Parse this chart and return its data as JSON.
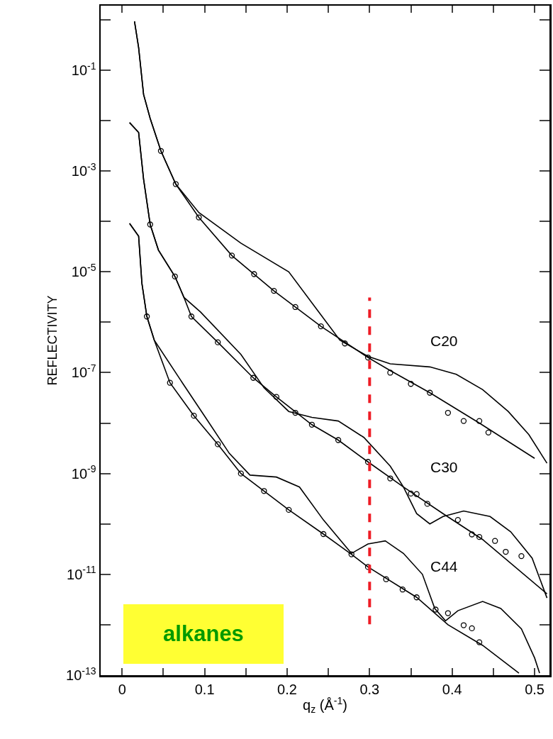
{
  "chart_data": {
    "type": "line",
    "xlabel": "q$_{z}$ (Å$^{-1}$)",
    "ylabel": "REFLECTIVITY",
    "log": "y",
    "grid": false,
    "xlim": [
      -0.026,
      0.518
    ],
    "ylim": [
      1e-13,
      1.9
    ],
    "xticks": [
      0,
      {
        "value": 0.05,
        "label": null
      },
      0.1,
      {
        "value": 0.15,
        "label": null
      },
      0.2,
      {
        "value": 0.25,
        "label": null
      },
      0.3,
      {
        "value": 0.35,
        "label": null
      },
      0.4,
      {
        "value": 0.45,
        "label": null
      },
      0.5
    ],
    "yticks": [
      {
        "value": 1e-13,
        "label": "10$^{-13}$"
      },
      {
        "value": 1e-12,
        "label": null
      },
      {
        "value": 1e-11,
        "label": "10$^{-11}$"
      },
      {
        "value": 1e-10,
        "label": null
      },
      {
        "value": 1e-09,
        "label": "10$^{-9}$"
      },
      {
        "value": 1e-08,
        "label": null
      },
      {
        "value": 1e-07,
        "label": "10$^{-7}$"
      },
      {
        "value": 1e-06,
        "label": null
      },
      {
        "value": 1e-05,
        "label": "10$^{-5}$"
      },
      {
        "value": 0.0001,
        "label": null
      },
      {
        "value": 0.001,
        "label": "10$^{-3}$"
      },
      {
        "value": 0.01,
        "label": null
      },
      {
        "value": 0.1,
        "label": "10$^{-1}$"
      },
      {
        "value": 1,
        "label": null
      }
    ],
    "series": [
      {
        "marker": "none",
        "color": "#000000",
        "x": [
          0.015,
          0.02,
          0.026,
          0.034,
          0.047,
          0.065,
          0.093,
          0.133,
          0.184,
          0.241,
          0.298,
          0.325,
          0.373,
          0.433,
          0.5
        ],
        "values": [
          0.93,
          0.28,
          0.033,
          0.011,
          0.0025,
          0.00055,
          0.00012,
          2.1e-05,
          4.2e-06,
          8.3e-07,
          2e-07,
          1.1e-07,
          4e-08,
          1e-08,
          2e-09
        ]
      },
      {
        "marker": "none",
        "color": "#000000",
        "x": [
          0.015,
          0.02,
          0.026,
          0.034,
          0.047,
          0.065,
          0.093,
          0.144,
          0.202,
          0.241,
          0.264,
          0.298,
          0.325,
          0.373,
          0.405,
          0.437,
          0.468,
          0.493,
          0.515
        ],
        "values": [
          0.93,
          0.28,
          0.033,
          0.011,
          0.0025,
          0.00055,
          0.00015,
          3.7e-05,
          1e-05,
          1.4e-06,
          4.4e-07,
          2.1e-07,
          1.5e-07,
          1.3e-07,
          9.3e-08,
          4.6e-08,
          1.7e-08,
          5.9e-09,
          1.6e-09
        ]
      },
      {
        "type": "scatter",
        "marker": "circle",
        "color": "#000000",
        "x": [
          0.047,
          0.065,
          0.093,
          0.133,
          0.16,
          0.184,
          0.21,
          0.241,
          0.27,
          0.298,
          0.325,
          0.35,
          0.373,
          0.395,
          0.414,
          0.433,
          0.444
        ],
        "values": [
          0.0025,
          0.00055,
          0.00012,
          2.1e-05,
          9e-06,
          4.2e-06,
          2e-06,
          8.3e-07,
          3.8e-07,
          2e-07,
          1e-07,
          6e-08,
          4e-08,
          1.6e-08,
          1.1e-08,
          1.1e-08,
          6.5e-09
        ]
      },
      {
        "marker": "none",
        "color": "#000000",
        "x": [
          0.009,
          0.02,
          0.026,
          0.034,
          0.044,
          0.064,
          0.075,
          0.084,
          0.116,
          0.159,
          0.187,
          0.23,
          0.262,
          0.298,
          0.341,
          0.389,
          0.437,
          0.515
        ],
        "values": [
          0.0091,
          0.0058,
          0.00069,
          8.7e-05,
          2.7e-05,
          8.1e-06,
          3.1e-06,
          1.3e-06,
          4e-07,
          7.9e-08,
          3.3e-08,
          9.3e-09,
          4.6e-09,
          1.7e-09,
          5.4e-10,
          1.6e-10,
          4.9e-11,
          4.1e-12
        ]
      },
      {
        "marker": "none",
        "color": "#000000",
        "x": [
          0.009,
          0.02,
          0.026,
          0.034,
          0.044,
          0.064,
          0.075,
          0.095,
          0.144,
          0.172,
          0.202,
          0.23,
          0.262,
          0.293,
          0.325,
          0.341,
          0.357,
          0.373,
          0.389,
          0.414,
          0.446,
          0.471,
          0.497,
          0.515
        ],
        "values": [
          0.0091,
          0.0058,
          0.00069,
          8.7e-05,
          2.7e-05,
          8.1e-06,
          3.1e-06,
          1.6e-06,
          2.3e-07,
          5e-08,
          1.7e-08,
          1.3e-08,
          1.1e-08,
          5.2e-09,
          1.4e-09,
          5.4e-10,
          1.6e-10,
          1e-10,
          1.4e-10,
          1.8e-10,
          1.4e-10,
          7e-11,
          2.1e-11,
          3.4e-12
        ]
      },
      {
        "type": "scatter",
        "marker": "circle",
        "color": "#000000",
        "x": [
          0.034,
          0.064,
          0.084,
          0.116,
          0.159,
          0.187,
          0.21,
          0.23,
          0.262,
          0.298,
          0.325,
          0.35,
          0.357,
          0.37,
          0.407,
          0.424,
          0.433,
          0.452,
          0.465,
          0.484
        ],
        "values": [
          8.7e-05,
          8.1e-06,
          1.3e-06,
          4e-07,
          7.9e-08,
          3.3e-08,
          1.6e-08,
          9.3e-09,
          4.6e-09,
          1.7e-09,
          8e-10,
          4e-10,
          3.9e-10,
          2.5e-10,
          1.2e-10,
          6.2e-11,
          5.5e-11,
          4.6e-11,
          2.8e-11,
          2.3e-11
        ]
      },
      {
        "marker": "none",
        "color": "#000000",
        "x": [
          0.009,
          0.02,
          0.024,
          0.03,
          0.039,
          0.058,
          0.087,
          0.116,
          0.144,
          0.172,
          0.202,
          0.244,
          0.278,
          0.298,
          0.357,
          0.395,
          0.437,
          0.481
        ],
        "values": [
          9.1e-05,
          5.1e-05,
          5.9e-06,
          1.3e-06,
          4.4e-07,
          6.3e-08,
          1.4e-08,
          3.8e-09,
          1e-09,
          4.5e-10,
          1.9e-10,
          6.3e-11,
          2.5e-11,
          1.4e-11,
          3.5e-12,
          1e-12,
          3.9e-13,
          1.1e-13
        ]
      },
      {
        "marker": "none",
        "color": "#000000",
        "x": [
          0.009,
          0.02,
          0.024,
          0.03,
          0.039,
          0.073,
          0.101,
          0.13,
          0.155,
          0.187,
          0.215,
          0.244,
          0.256,
          0.278,
          0.298,
          0.319,
          0.341,
          0.364,
          0.379,
          0.392,
          0.407,
          0.437,
          0.459,
          0.484,
          0.5,
          0.506
        ],
        "values": [
          9.1e-05,
          5.1e-05,
          5.9e-06,
          1.3e-06,
          4.4e-07,
          6.3e-08,
          1.3e-08,
          2.5e-09,
          9.3e-10,
          8.5e-10,
          5.4e-10,
          1.2e-10,
          7e-11,
          2.6e-11,
          4e-11,
          4.6e-11,
          2.6e-11,
          1e-11,
          2.1e-12,
          1.2e-12,
          1.9e-12,
          2.9e-12,
          2.1e-12,
          8.3e-13,
          2.2e-13,
          1.1e-13
        ]
      },
      {
        "type": "scatter",
        "marker": "circle",
        "color": "#000000",
        "x": [
          0.03,
          0.058,
          0.087,
          0.116,
          0.144,
          0.172,
          0.202,
          0.244,
          0.278,
          0.298,
          0.32,
          0.34,
          0.357,
          0.38,
          0.395,
          0.414,
          0.424,
          0.433
        ],
        "values": [
          1.3e-06,
          6.3e-08,
          1.4e-08,
          3.8e-09,
          1e-09,
          4.5e-10,
          1.9e-10,
          6.3e-11,
          2.5e-11,
          1.4e-11,
          8e-12,
          5e-12,
          3.5e-12,
          2e-12,
          1.7e-12,
          9.8e-13,
          8.5e-13,
          4.5e-13
        ]
      }
    ],
    "ref_lines": [
      {
        "axis": "x",
        "value": 0.3,
        "color": "#ee1c25",
        "line_style": "dashed"
      }
    ],
    "annotations": [
      "C20",
      "C30",
      "C44",
      "alkanes"
    ]
  }
}
